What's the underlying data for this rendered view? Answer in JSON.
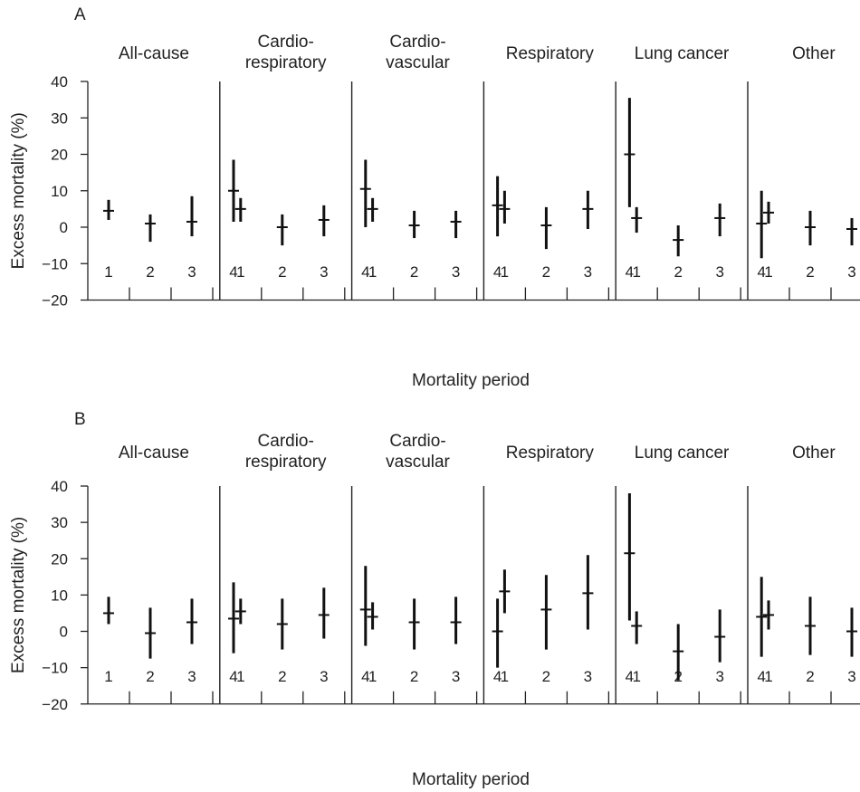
{
  "chart_data": [
    {
      "type": "scatter",
      "panel_label": "A",
      "xlabel": "Mortality period",
      "ylabel": "Excess mortality (%)",
      "ylim": [
        -20,
        40
      ],
      "yticks": [
        "40",
        "30",
        "20",
        "10",
        "0",
        "−10",
        "−20"
      ],
      "periods": [
        "1",
        "2",
        "3",
        "4"
      ],
      "categories": [
        {
          "name": [
            "All-cause"
          ],
          "estimates": [
            4.5,
            1.0,
            1.5,
            10.0
          ],
          "ci_low": [
            2.0,
            -4.0,
            -2.5,
            1.5
          ],
          "ci_high": [
            7.5,
            3.5,
            8.5,
            18.5
          ]
        },
        {
          "name": [
            "Cardio-",
            "respiratory"
          ],
          "estimates": [
            5.0,
            0.0,
            2.0,
            10.5
          ],
          "ci_low": [
            1.5,
            -5.0,
            -2.5,
            0.0
          ],
          "ci_high": [
            8.0,
            3.5,
            6.0,
            18.5
          ]
        },
        {
          "name": [
            "Cardio-",
            "vascular"
          ],
          "estimates": [
            5.0,
            0.5,
            1.5,
            6.0
          ],
          "ci_low": [
            1.5,
            -3.0,
            -3.0,
            -2.5
          ],
          "ci_high": [
            8.0,
            4.5,
            4.5,
            14.0
          ]
        },
        {
          "name": [
            "Respiratory"
          ],
          "estimates": [
            5.0,
            0.5,
            5.0,
            20.0
          ],
          "ci_low": [
            1.0,
            -6.0,
            -0.5,
            5.5
          ],
          "ci_high": [
            10.0,
            5.5,
            10.0,
            35.5
          ]
        },
        {
          "name": [
            "Lung cancer"
          ],
          "estimates": [
            2.5,
            -3.5,
            2.5,
            1.0
          ],
          "ci_low": [
            -1.5,
            -8.0,
            -2.5,
            -8.5
          ],
          "ci_high": [
            5.5,
            0.5,
            6.5,
            10.0
          ]
        },
        {
          "name": [
            "Other"
          ],
          "estimates": [
            4.0,
            0.0,
            -0.5,
            5.5
          ],
          "ci_low": [
            1.0,
            -5.0,
            -5.0,
            -1.5
          ],
          "ci_high": [
            7.0,
            4.5,
            2.5,
            13.0
          ]
        }
      ],
      "grid": false
    },
    {
      "type": "scatter",
      "panel_label": "B",
      "xlabel": "Mortality period",
      "ylabel": "Excess mortality (%)",
      "ylim": [
        -20,
        40
      ],
      "yticks": [
        "40",
        "30",
        "20",
        "10",
        "0",
        "−10",
        "−20"
      ],
      "periods": [
        "1",
        "2",
        "3",
        "4"
      ],
      "categories": [
        {
          "name": [
            "All-cause"
          ],
          "estimates": [
            5.0,
            -0.5,
            2.5,
            3.5
          ],
          "ci_low": [
            2.0,
            -7.5,
            -3.5,
            -6.0
          ],
          "ci_high": [
            9.5,
            6.5,
            9.0,
            13.5
          ]
        },
        {
          "name": [
            "Cardio-",
            "respiratory"
          ],
          "estimates": [
            5.5,
            2.0,
            4.5,
            6.0
          ],
          "ci_low": [
            2.0,
            -5.0,
            -2.0,
            -4.0
          ],
          "ci_high": [
            9.0,
            9.0,
            12.0,
            18.0
          ]
        },
        {
          "name": [
            "Cardio-",
            "vascular"
          ],
          "estimates": [
            4.0,
            2.5,
            2.5,
            0.0
          ],
          "ci_low": [
            0.5,
            -5.0,
            -3.5,
            -10.0
          ],
          "ci_high": [
            8.0,
            9.0,
            9.5,
            9.0
          ]
        },
        {
          "name": [
            "Respiratory"
          ],
          "estimates": [
            11.0,
            6.0,
            10.5,
            21.5
          ],
          "ci_low": [
            5.0,
            -5.0,
            0.5,
            3.0
          ],
          "ci_high": [
            17.0,
            15.5,
            21.0,
            38.0
          ]
        },
        {
          "name": [
            "Lung cancer"
          ],
          "estimates": [
            1.5,
            -5.5,
            -1.5,
            4.0
          ],
          "ci_low": [
            -3.5,
            -13.5,
            -8.5,
            -7.0
          ],
          "ci_high": [
            5.5,
            2.0,
            6.0,
            15.0
          ]
        },
        {
          "name": [
            "Other"
          ],
          "estimates": [
            4.5,
            1.5,
            0.0,
            2.5
          ],
          "ci_low": [
            0.5,
            -6.5,
            -7.0,
            -7.0
          ],
          "ci_high": [
            8.5,
            9.5,
            6.5,
            11.0
          ]
        }
      ],
      "grid": false
    }
  ]
}
